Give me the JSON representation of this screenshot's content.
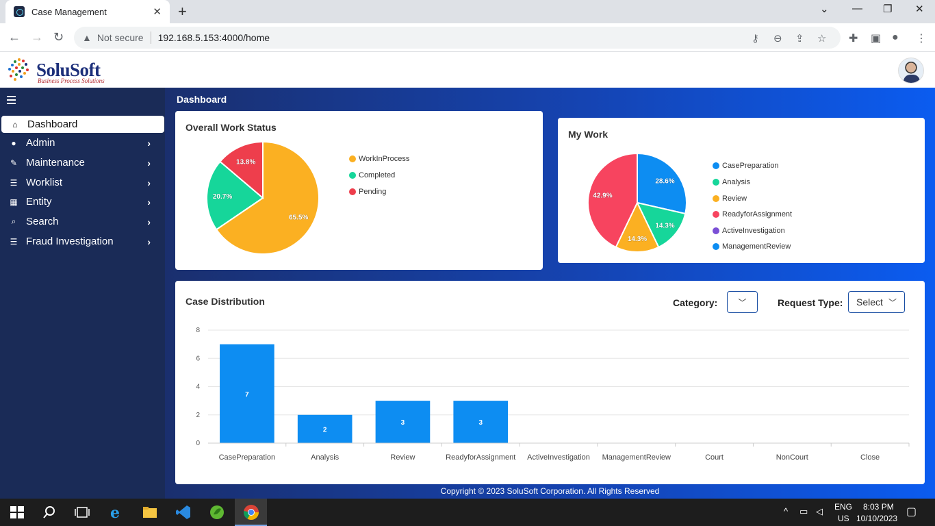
{
  "browser": {
    "tab_title": "Case Management",
    "not_secure_label": "Not secure",
    "url": "192.168.5.153:4000/home"
  },
  "app": {
    "logo_name": "SoluSoft",
    "logo_tagline": "Business Process Solutions",
    "page_title": "Dashboard"
  },
  "sidebar": {
    "items": [
      {
        "label": "Dashboard",
        "icon": "home-icon",
        "active": true
      },
      {
        "label": "Admin",
        "icon": "user-icon"
      },
      {
        "label": "Maintenance",
        "icon": "wrench-icon"
      },
      {
        "label": "Worklist",
        "icon": "list-icon"
      },
      {
        "label": "Entity",
        "icon": "building-icon"
      },
      {
        "label": "Search",
        "icon": "search-icon"
      },
      {
        "label": "Fraud Investigation",
        "icon": "list-icon"
      }
    ]
  },
  "overall_work_status": {
    "title": "Overall Work Status"
  },
  "my_work": {
    "title": "My Work"
  },
  "case_distribution": {
    "title": "Case Distribution",
    "category_label": "Category:",
    "category_value": "",
    "request_type_label": "Request Type:",
    "request_type_value": "Select"
  },
  "footer": {
    "text": "Copyright © 2023 SoluSoft Corporation. All Rights Reserved"
  },
  "taskbar": {
    "lang": "ENG",
    "region": "US",
    "time": "8:03 PM",
    "date": "10/10/2023"
  },
  "colors": {
    "sidebar_bg": "#1a2b57",
    "accent_blue": "#0d8df2",
    "yellow": "#fbb022",
    "green": "#16d69a",
    "red": "#ee3e4c",
    "pink_red": "#f7445f",
    "purple": "#7b4fd6"
  },
  "chart_data": [
    {
      "type": "pie",
      "title": "Overall Work Status",
      "labels": [
        "WorkInProcess",
        "Completed",
        "Pending"
      ],
      "values": [
        65.5,
        20.7,
        13.8
      ],
      "value_labels": [
        "65.5%",
        "20.7%",
        "13.8%"
      ],
      "colors": [
        "#fbb022",
        "#16d69a",
        "#ee3e4c"
      ],
      "legend": "right"
    },
    {
      "type": "pie",
      "title": "My Work",
      "labels": [
        "CasePreparation",
        "Analysis",
        "Review",
        "ReadyforAssignment",
        "ActiveInvestigation",
        "ManagementReview"
      ],
      "values": [
        28.6,
        14.3,
        14.3,
        42.9,
        0,
        0
      ],
      "value_labels": [
        "28.6%",
        "14.3%",
        "14.3%",
        "42.9%",
        "",
        ""
      ],
      "colors": [
        "#0d8df2",
        "#16d69a",
        "#fbb022",
        "#f7445f",
        "#7b4fd6",
        "#0d8df2"
      ],
      "legend": "right"
    },
    {
      "type": "bar",
      "title": "Case Distribution",
      "categories": [
        "CasePreparation",
        "Analysis",
        "Review",
        "ReadyforAssignment",
        "ActiveInvestigation",
        "ManagementReview",
        "Court",
        "NonCourt",
        "Close"
      ],
      "values": [
        7,
        2,
        3,
        3,
        0,
        0,
        0,
        0,
        0
      ],
      "ylim": [
        0,
        8
      ],
      "yticks": [
        0,
        2,
        4,
        6,
        8
      ],
      "grid": true,
      "color": "#0d8df2"
    }
  ]
}
